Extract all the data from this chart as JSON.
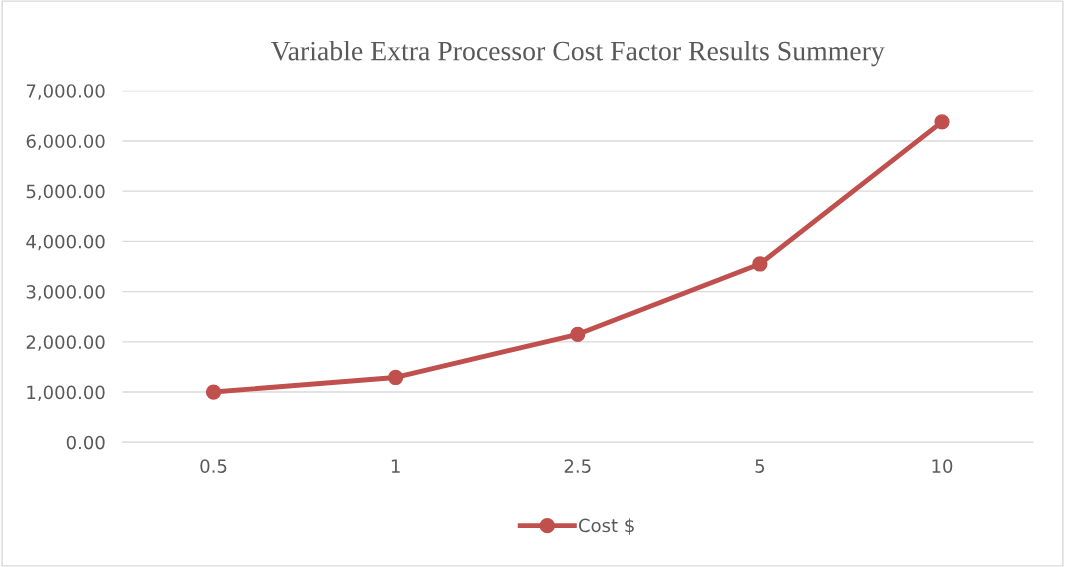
{
  "chart_data": {
    "type": "line",
    "title": "Variable Extra Processor Cost Factor Results Summery",
    "categories": [
      "0.5",
      "1",
      "2.5",
      "5",
      "10"
    ],
    "series": [
      {
        "name": "Cost $",
        "color": "#c0504d",
        "values": [
          1000,
          1290,
          2150,
          3550,
          6380
        ]
      }
    ],
    "ylim": [
      0,
      7000
    ],
    "yticks": [
      {
        "value": 0,
        "label": "0.00"
      },
      {
        "value": 1000,
        "label": "1,000.00"
      },
      {
        "value": 2000,
        "label": "2,000.00"
      },
      {
        "value": 3000,
        "label": "3,000.00"
      },
      {
        "value": 4000,
        "label": "4,000.00"
      },
      {
        "value": 5000,
        "label": "5,000.00"
      },
      {
        "value": 6000,
        "label": "6,000.00"
      },
      {
        "value": 7000,
        "label": "7,000.00"
      }
    ],
    "grid": "y",
    "legend": "bottom",
    "marker": "circle",
    "line_style": "solid"
  }
}
